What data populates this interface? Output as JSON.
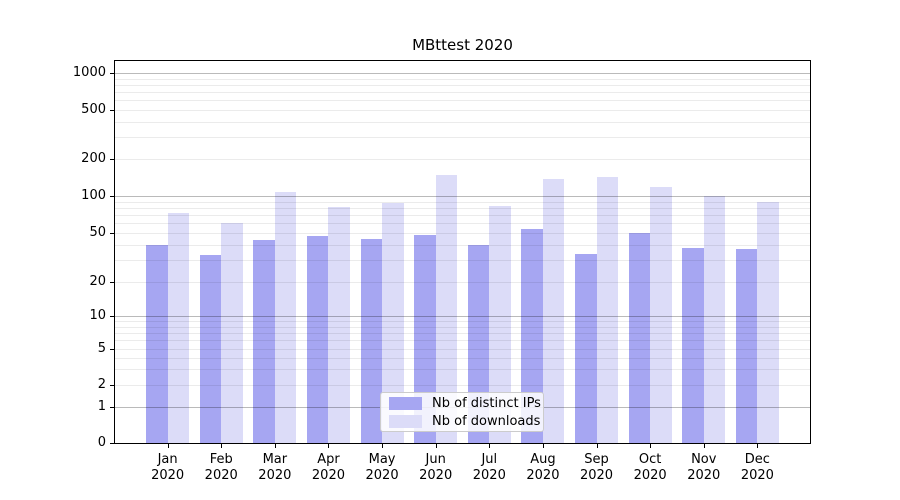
{
  "chart_data": {
    "type": "bar",
    "title": "MBttest 2020",
    "categories": [
      "Jan 2020",
      "Feb 2020",
      "Mar 2020",
      "Apr 2020",
      "May 2020",
      "Jun 2020",
      "Jul 2020",
      "Aug 2020",
      "Sep 2020",
      "Oct 2020",
      "Nov 2020",
      "Dec 2020"
    ],
    "x_tick_month": [
      "Jan",
      "Feb",
      "Mar",
      "Apr",
      "May",
      "Jun",
      "Jul",
      "Aug",
      "Sep",
      "Oct",
      "Nov",
      "Dec"
    ],
    "x_tick_year": "2020",
    "series": [
      {
        "name": "Nb of distinct IPs",
        "color": "#a6a6f2",
        "values": [
          40,
          33,
          44,
          47,
          45,
          48,
          40,
          54,
          34,
          50,
          38,
          37
        ]
      },
      {
        "name": "Nb of downloads",
        "color": "#dcdcf8",
        "values": [
          73,
          60,
          108,
          81,
          88,
          148,
          83,
          137,
          143,
          118,
          100,
          89
        ]
      }
    ],
    "y_axis": {
      "scale": "symlog",
      "tick_values": [
        0,
        1,
        2,
        5,
        10,
        20,
        50,
        100,
        200,
        500,
        1000
      ],
      "tick_labels": [
        "0",
        "1",
        "2",
        "5",
        "10",
        "20",
        "50",
        "100",
        "200",
        "500",
        "1000"
      ],
      "major_grid_values": [
        1,
        10,
        100,
        1000
      ],
      "minor_grid_values": [
        2,
        3,
        4,
        5,
        6,
        7,
        8,
        9,
        20,
        30,
        40,
        50,
        60,
        70,
        80,
        90,
        200,
        300,
        400,
        500,
        600,
        700,
        800,
        900
      ],
      "scale_anchors": [
        [
          0,
          382
        ],
        [
          1,
          346
        ],
        [
          2,
          324
        ],
        [
          5,
          288
        ],
        [
          10,
          255
        ],
        [
          20,
          221
        ],
        [
          50,
          172
        ],
        [
          100,
          135
        ],
        [
          200,
          98
        ],
        [
          500,
          49
        ],
        [
          1000,
          12
        ]
      ],
      "ylim": [
        0,
        1280
      ]
    },
    "xlabel": "",
    "ylabel": "",
    "grid": true,
    "legend_position": "inside-lower-center"
  },
  "colors": {
    "grid_major": "rgba(0,0,0,0.27)",
    "grid_minor": "rgba(0,0,0,0.08)",
    "spine": "#000000",
    "text": "#000000",
    "legend_border": "#cccccc",
    "legend_background": "rgba(255,255,255,0.85)"
  }
}
